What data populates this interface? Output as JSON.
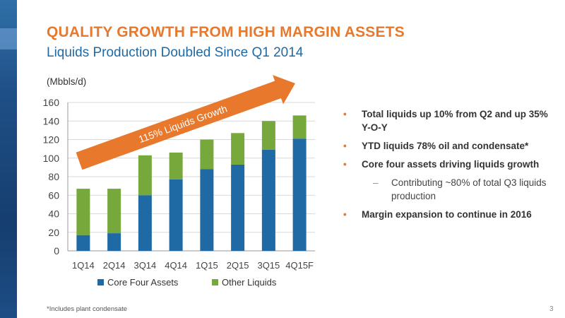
{
  "header": {
    "title": "QUALITY GROWTH FROM HIGH MARGIN ASSETS",
    "subtitle": "Liquids Production Doubled Since Q1 2014"
  },
  "chart_data": {
    "type": "bar",
    "stacked": true,
    "unit_label": "(Mbbls/d)",
    "categories": [
      "1Q14",
      "2Q14",
      "3Q14",
      "4Q14",
      "1Q15",
      "2Q15",
      "3Q15",
      "4Q15F"
    ],
    "series": [
      {
        "name": "Core Four Assets",
        "color": "#1f6aa5",
        "values": [
          17,
          19,
          60,
          77,
          88,
          93,
          109,
          121
        ]
      },
      {
        "name": "Other Liquids",
        "color": "#77a83b",
        "values": [
          50,
          48,
          43,
          29,
          32,
          34,
          31,
          25
        ]
      }
    ],
    "ylim": [
      0,
      160
    ],
    "yticks": [
      0,
      20,
      40,
      60,
      80,
      100,
      120,
      140,
      160
    ],
    "legend_position": "bottom",
    "annotation": {
      "text": "115% Liquids Growth",
      "color": "#e8792c"
    }
  },
  "bullets": [
    {
      "level": 1,
      "text": "Total liquids up 10% from Q2 and up 35% Y-O-Y"
    },
    {
      "level": 1,
      "text": "YTD liquids 78% oil and condensate*"
    },
    {
      "level": 1,
      "text": "Core four assets driving liquids growth"
    },
    {
      "level": 2,
      "text": "Contributing ~80% of total Q3 liquids production"
    },
    {
      "level": 1,
      "text": "Margin expansion to continue in 2016"
    }
  ],
  "footer": {
    "footnote": "*Includes plant condensate",
    "page_number": "3"
  }
}
